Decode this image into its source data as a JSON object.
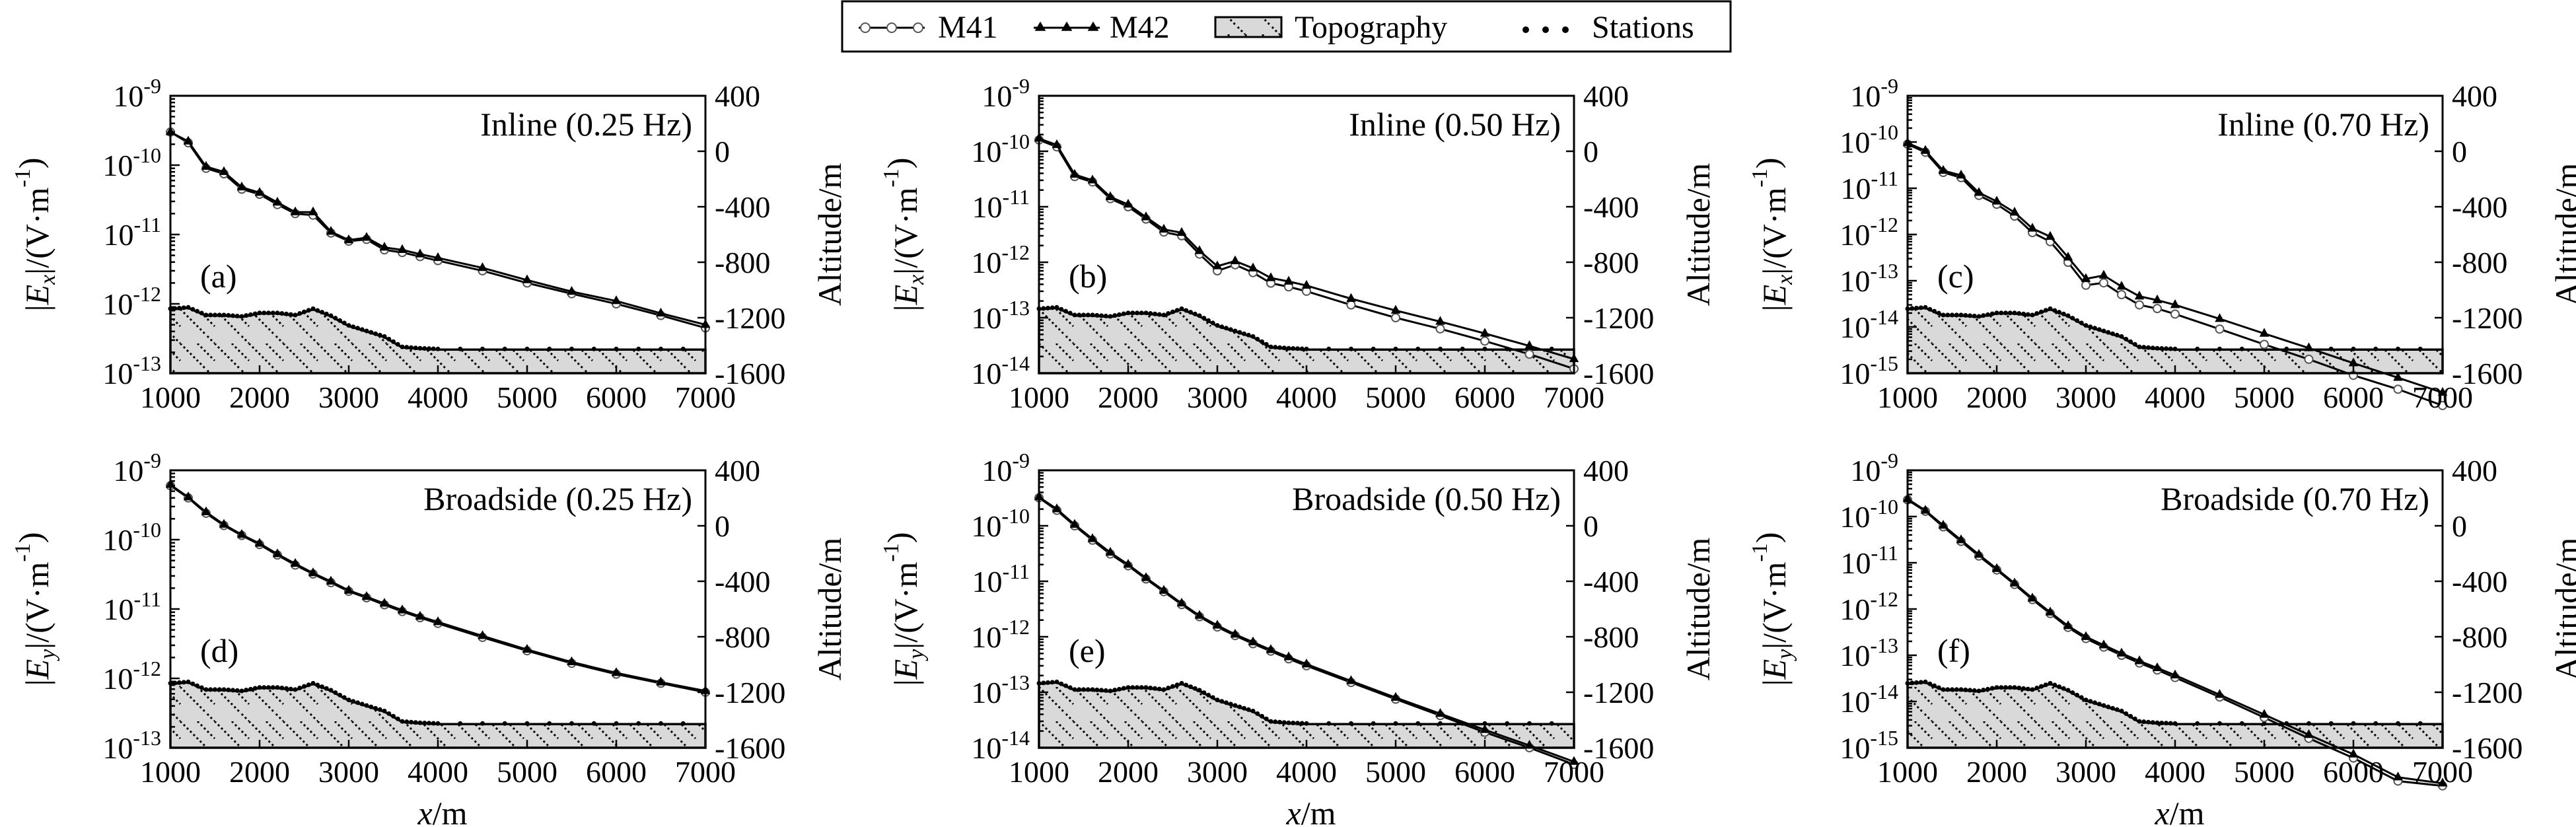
{
  "legend": {
    "entries": [
      {
        "name": "M41",
        "marker": "open-circle"
      },
      {
        "name": "M42",
        "marker": "triangle"
      },
      {
        "name": "Topography",
        "marker": "hatched-patch"
      },
      {
        "name": "Stations",
        "marker": "dots"
      }
    ]
  },
  "common": {
    "xlabel": "/m",
    "xlabel_var": "x",
    "right_ylabel": "Altitude/m",
    "x_ticks": [
      1000,
      2000,
      3000,
      4000,
      5000,
      6000,
      7000
    ],
    "right_ticks": [
      400,
      0,
      -400,
      -800,
      -1200,
      -1600
    ],
    "right_ylim": [
      -1600,
      400
    ],
    "xlim": [
      1000,
      7000
    ]
  },
  "topography": {
    "x": [
      1000,
      1200,
      1400,
      1600,
      1800,
      2000,
      2200,
      2400,
      2600,
      2800,
      3000,
      3200,
      3400,
      3600,
      3800,
      4000,
      5000,
      6000,
      7000
    ],
    "altitude": [
      -1140,
      -1130,
      -1185,
      -1185,
      -1195,
      -1170,
      -1170,
      -1185,
      -1140,
      -1190,
      -1260,
      -1300,
      -1340,
      -1415,
      -1425,
      -1430,
      -1430,
      -1430,
      -1430
    ]
  },
  "chart_data": [
    {
      "type": "line",
      "panel": "(a)",
      "title": "Inline (0.25 Hz)",
      "ylabel_main": "E",
      "ylabel_sub": "x",
      "ylabel_unit": "|/(V·m",
      "ylim_exp": [
        -13,
        -9
      ],
      "x": [
        1000,
        1200,
        1400,
        1600,
        1800,
        2000,
        2200,
        2400,
        2600,
        2800,
        3000,
        3200,
        3400,
        3600,
        3800,
        4000,
        4500,
        5000,
        5500,
        6000,
        6500,
        7000
      ],
      "series": [
        {
          "name": "M41",
          "values": [
            3e-10,
            2.1e-10,
            9e-11,
            7.5e-11,
            4.5e-11,
            3.8e-11,
            2.7e-11,
            2e-11,
            1.9e-11,
            1.05e-11,
            8e-12,
            8.5e-12,
            6e-12,
            5.5e-12,
            4.8e-12,
            4.2e-12,
            3e-12,
            2e-12,
            1.4e-12,
            1e-12,
            6.8e-13,
            4.5e-13
          ]
        },
        {
          "name": "M42",
          "values": [
            3e-10,
            2.2e-10,
            9.5e-11,
            8e-11,
            4.8e-11,
            4e-11,
            2.9e-11,
            2.1e-11,
            2.1e-11,
            1.1e-11,
            8.3e-12,
            9e-12,
            6.5e-12,
            6e-12,
            5.2e-12,
            4.6e-12,
            3.3e-12,
            2.2e-12,
            1.5e-12,
            1.1e-12,
            7.3e-13,
            5e-13
          ]
        }
      ]
    },
    {
      "type": "line",
      "panel": "(b)",
      "title": "Inline (0.50 Hz)",
      "ylabel_main": "E",
      "ylabel_sub": "x",
      "ylabel_unit": "|/(V·m",
      "ylim_exp": [
        -14,
        -9
      ],
      "x": [
        1000,
        1200,
        1400,
        1600,
        1800,
        2000,
        2200,
        2400,
        2600,
        2800,
        3000,
        3200,
        3400,
        3600,
        3800,
        4000,
        4500,
        5000,
        5500,
        6000,
        6500,
        7000
      ],
      "series": [
        {
          "name": "M41",
          "values": [
            1.6e-10,
            1.2e-10,
            3.5e-11,
            2.8e-11,
            1.4e-11,
            1e-11,
            6e-12,
            3.5e-12,
            3e-12,
            1.4e-12,
            7e-13,
            9e-13,
            6.5e-13,
            4.2e-13,
            3.6e-13,
            3e-13,
            1.7e-13,
            1e-13,
            6.3e-14,
            3.8e-14,
            2.2e-14,
            1.2e-14
          ]
        },
        {
          "name": "M42",
          "values": [
            1.7e-10,
            1.3e-10,
            3.8e-11,
            3e-11,
            1.5e-11,
            1.1e-11,
            6.5e-12,
            3.9e-12,
            3.4e-12,
            1.6e-12,
            8.5e-13,
            1.05e-12,
            7.8e-13,
            5.2e-13,
            4.5e-13,
            3.8e-13,
            2.2e-13,
            1.35e-13,
            8.5e-14,
            5.2e-14,
            3.1e-14,
            1.8e-14
          ]
        }
      ]
    },
    {
      "type": "line",
      "panel": "(c)",
      "title": "Inline (0.70 Hz)",
      "ylabel_main": "E",
      "ylabel_sub": "x",
      "ylabel_unit": "|/(V·m",
      "ylim_exp": [
        -15,
        -9
      ],
      "x": [
        1000,
        1200,
        1400,
        1600,
        1800,
        2000,
        2200,
        2400,
        2600,
        2800,
        3000,
        3200,
        3400,
        3600,
        3800,
        4000,
        4500,
        5000,
        5500,
        6000,
        6500,
        7000
      ],
      "series": [
        {
          "name": "M41",
          "values": [
            9e-11,
            6e-11,
            2.2e-11,
            1.7e-11,
            7e-12,
            4.5e-12,
            2.5e-12,
            1.1e-12,
            7e-13,
            2.5e-13,
            8e-14,
            9e-14,
            5e-14,
            3e-14,
            2.5e-14,
            1.9e-14,
            9e-15,
            4.2e-15,
            2e-15,
            9e-16,
            4.5e-16,
            2e-16
          ]
        },
        {
          "name": "M42",
          "values": [
            9.5e-11,
            6.5e-11,
            2.4e-11,
            1.9e-11,
            8e-12,
            5.2e-12,
            3e-12,
            1.35e-12,
            9e-13,
            3.2e-13,
            1.1e-13,
            1.3e-13,
            7.5e-14,
            4.6e-14,
            3.8e-14,
            3e-14,
            1.5e-14,
            7.2e-15,
            3.5e-15,
            1.65e-15,
            8e-16,
            3.8e-16
          ]
        }
      ]
    },
    {
      "type": "line",
      "panel": "(d)",
      "title": "Broadside (0.25 Hz)",
      "ylabel_main": "E",
      "ylabel_sub": "y",
      "ylabel_unit": "|/(V·m",
      "ylim_exp": [
        -13,
        -9
      ],
      "x": [
        1000,
        1200,
        1400,
        1600,
        1800,
        2000,
        2200,
        2400,
        2600,
        2800,
        3000,
        3200,
        3400,
        3600,
        3800,
        4000,
        4500,
        5000,
        5500,
        6000,
        6500,
        7000
      ],
      "series": [
        {
          "name": "M41",
          "values": [
            6e-10,
            4e-10,
            2.4e-10,
            1.6e-10,
            1.15e-10,
            8.5e-11,
            6e-11,
            4.3e-11,
            3.2e-11,
            2.4e-11,
            1.8e-11,
            1.45e-11,
            1.15e-11,
            9.2e-12,
            7.5e-12,
            6.2e-12,
            3.9e-12,
            2.5e-12,
            1.65e-12,
            1.15e-12,
            8.5e-13,
            6.3e-13
          ]
        },
        {
          "name": "M42",
          "values": [
            6.2e-10,
            4.1e-10,
            2.5e-10,
            1.65e-10,
            1.18e-10,
            8.8e-11,
            6.2e-11,
            4.5e-11,
            3.3e-11,
            2.5e-11,
            1.85e-11,
            1.5e-11,
            1.2e-11,
            9.6e-12,
            7.8e-12,
            6.5e-12,
            4.1e-12,
            2.6e-12,
            1.72e-12,
            1.2e-12,
            8.8e-13,
            6.6e-13
          ]
        }
      ]
    },
    {
      "type": "line",
      "panel": "(e)",
      "title": "Broadside (0.50 Hz)",
      "ylabel_main": "E",
      "ylabel_sub": "y",
      "ylabel_unit": "|/(V·m",
      "ylim_exp": [
        -14,
        -9
      ],
      "x": [
        1000,
        1200,
        1400,
        1600,
        1800,
        2000,
        2200,
        2400,
        2600,
        2800,
        3000,
        3200,
        3400,
        3600,
        3800,
        4000,
        4500,
        5000,
        5500,
        6000,
        6500,
        7000
      ],
      "series": [
        {
          "name": "M41",
          "values": [
            3.2e-10,
            1.9e-10,
            1e-10,
            5.5e-11,
            3.1e-11,
            1.9e-11,
            1.1e-11,
            6.5e-12,
            3.8e-12,
            2.3e-12,
            1.5e-12,
            1.05e-12,
            7.5e-13,
            5.5e-13,
            4e-13,
            3e-13,
            1.5e-13,
            7.5e-14,
            3.8e-14,
            1.9e-14,
            1e-14,
            5e-15
          ]
        },
        {
          "name": "M42",
          "values": [
            3.3e-10,
            2e-10,
            1.05e-10,
            5.8e-11,
            3.3e-11,
            2e-11,
            1.15e-11,
            6.8e-12,
            4e-12,
            2.4e-12,
            1.6e-12,
            1.1e-12,
            8e-13,
            5.8e-13,
            4.3e-13,
            3.2e-13,
            1.6e-13,
            8e-14,
            4.1e-14,
            2.1e-14,
            1.1e-14,
            5.6e-15
          ]
        }
      ]
    },
    {
      "type": "line",
      "panel": "(f)",
      "title": "Broadside (0.70 Hz)",
      "ylabel_main": "E",
      "ylabel_sub": "y",
      "ylabel_unit": "|/(V·m",
      "ylim_exp": [
        -15,
        -9
      ],
      "x": [
        1000,
        1200,
        1400,
        1600,
        1800,
        2000,
        2200,
        2400,
        2600,
        2800,
        3000,
        3200,
        3400,
        3600,
        3800,
        4000,
        4500,
        5000,
        5500,
        6000,
        6500,
        7000
      ],
      "series": [
        {
          "name": "M41",
          "values": [
            2.3e-10,
            1.3e-10,
            6e-11,
            2.9e-11,
            1.4e-11,
            7e-12,
            3.4e-12,
            1.6e-12,
            8e-13,
            4e-13,
            2.3e-13,
            1.5e-13,
            1e-13,
            6.8e-14,
            4.8e-14,
            3.3e-14,
            1.25e-14,
            4.5e-15,
            1.6e-15,
            6e-16,
            1.9e-16,
            1.5e-16
          ]
        },
        {
          "name": "M42",
          "values": [
            2.4e-10,
            1.35e-10,
            6.4e-11,
            3.1e-11,
            1.5e-11,
            7.4e-12,
            3.6e-12,
            1.7e-12,
            8.5e-13,
            4.3e-13,
            2.5e-13,
            1.65e-13,
            1.1e-13,
            7.5e-14,
            5.3e-14,
            3.7e-14,
            1.4e-14,
            5.2e-15,
            1.9e-15,
            7.2e-16,
            2.3e-16,
            1.7e-16
          ]
        }
      ]
    }
  ]
}
